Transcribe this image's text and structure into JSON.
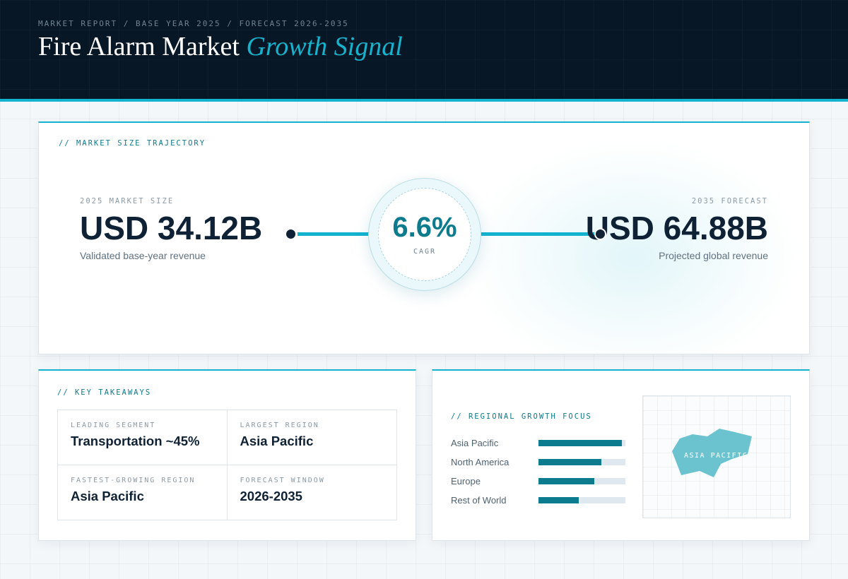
{
  "header": {
    "kicker": "MARKET REPORT / BASE YEAR 2025 / FORECAST 2026-2035",
    "title_main": "Fire Alarm Market",
    "title_accent": "Growth Signal"
  },
  "trajectory": {
    "label": "// MARKET SIZE TRAJECTORY",
    "base": {
      "caption": "2025 MARKET SIZE",
      "value": "USD 34.12B",
      "sub": "Validated base-year revenue"
    },
    "forecast": {
      "caption": "2035 FORECAST",
      "value": "USD 64.88B",
      "sub": "Projected global revenue"
    },
    "cagr": {
      "value": "6.6%",
      "label": "CAGR"
    }
  },
  "takeaways": {
    "label": "// KEY TAKEAWAYS",
    "items": [
      {
        "caption": "LEADING SEGMENT",
        "value": "Transportation ~45%"
      },
      {
        "caption": "LARGEST REGION",
        "value": "Asia Pacific"
      },
      {
        "caption": "FASTEST-GROWING REGION",
        "value": "Asia Pacific"
      },
      {
        "caption": "FORECAST WINDOW",
        "value": "2026-2035"
      }
    ]
  },
  "regional": {
    "label": "// REGIONAL GROWTH FOCUS",
    "bars": [
      {
        "name": "Asia Pacific",
        "level": 0.96
      },
      {
        "name": "North America",
        "level": 0.72
      },
      {
        "name": "Europe",
        "level": 0.64
      },
      {
        "name": "Rest of World",
        "level": 0.46
      }
    ],
    "bar_color": "#0d7b8e",
    "map_label": "ASIA PACIFIC",
    "map_color": "#6cc3d0"
  },
  "colors": {
    "accent": "#13b3cf",
    "dark": "#081725",
    "teal": "#0d7b8e"
  }
}
